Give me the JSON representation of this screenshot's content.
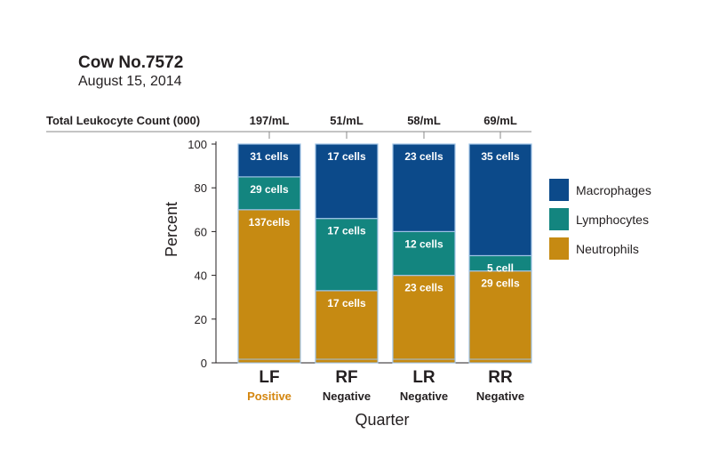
{
  "header": {
    "title": "Cow No.7572",
    "date": "August 15, 2014"
  },
  "chart_data": {
    "type": "bar",
    "stacked": true,
    "title": "",
    "xlabel": "Quarter",
    "ylabel": "Percent",
    "ylim": [
      0,
      100
    ],
    "yticks": [
      0,
      20,
      40,
      60,
      80,
      100
    ],
    "grid": false,
    "legend_position": "right",
    "count_row_label": "Total Leukocyte Count (000)",
    "categories": [
      "LF",
      "RF",
      "LR",
      "RR"
    ],
    "totals": [
      "197/mL",
      "51/mL",
      "58/mL",
      "69/mL"
    ],
    "status": [
      "Positive",
      "Negative",
      "Negative",
      "Negative"
    ],
    "status_colors": {
      "Positive": "#d4860f",
      "Negative": "#231f20"
    },
    "series": [
      {
        "name": "Neutrophils",
        "color": "#c68a12",
        "values": [
          70,
          33,
          40,
          42
        ],
        "labels": [
          "137cells",
          "17 cells",
          "23 cells",
          "29 cells"
        ]
      },
      {
        "name": "Lymphocytes",
        "color": "#13857f",
        "values": [
          15,
          33,
          20,
          7
        ],
        "labels": [
          "29 cells",
          "17 cells",
          "12 cells",
          "5 cell"
        ]
      },
      {
        "name": "Macrophages",
        "color": "#0c4a8a",
        "values": [
          15,
          34,
          40,
          51
        ],
        "labels": [
          "31 cells",
          "17 cells",
          "23 cells",
          "35 cells"
        ]
      }
    ],
    "legend_order": [
      "Macrophages",
      "Lymphocytes",
      "Neutrophils"
    ]
  }
}
